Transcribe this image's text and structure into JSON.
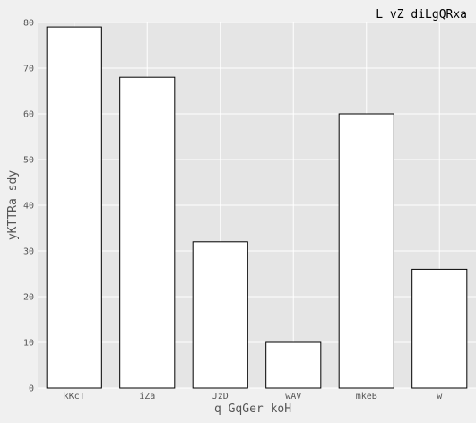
{
  "chart_data": {
    "type": "bar",
    "title": "L  vZ diLgQRxa",
    "xlabel": "q  GqGer  koH",
    "ylabel": "yKTTRa sdy",
    "categories": [
      "kKcT",
      "iZa",
      "JzD",
      "wAV",
      "mkeB",
      "w"
    ],
    "values": [
      79,
      68,
      32,
      10,
      60,
      26
    ],
    "ylim": [
      0,
      80
    ],
    "yticks": [
      0,
      10,
      20,
      30,
      40,
      50,
      60,
      70,
      80
    ],
    "grid": true,
    "colors": {
      "plot_background": "#e5e5e5",
      "grid": "#ffffff",
      "bar_fill": "#ffffff",
      "bar_edge": "#000000"
    }
  }
}
